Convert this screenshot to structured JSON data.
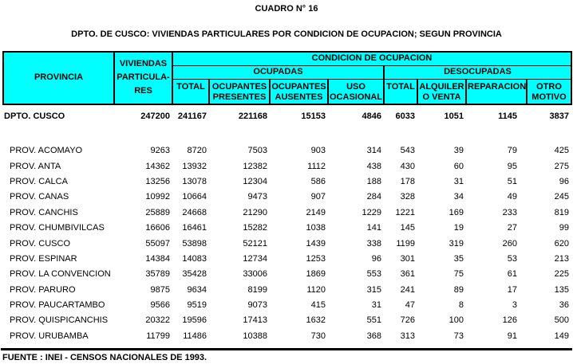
{
  "title": "CUADRO N° 16",
  "subtitle": "DPTO. DE CUSCO: VIVIENDAS PARTICULARES POR CONDICION DE OCUPACION; SEGUN PROVINCIA",
  "source": "FUENTE : INEI - CENSOS NACIONALES DE 1993.",
  "colors": {
    "header_bg": "#00FFFF",
    "border": "#000000",
    "text": "#000000",
    "background": "#FFFFFF"
  },
  "chart_data": {
    "type": "table",
    "header": {
      "provincia": "PROVINCIA",
      "viviendas": "VIVIENDAS\nPARTICULA-\nRES",
      "condicion": "CONDICION DE OCUPACION",
      "ocupadas": "OCUPADAS",
      "desocupadas": "DESOCUPADAS",
      "sub_columns": [
        "TOTAL",
        "OCUPANTES\nPRESENTES",
        "OCUPANTES\nAUSENTES",
        "USO\nOCASIONAL",
        "TOTAL",
        "ALQUILER\nO VENTA",
        "REPARACION",
        "OTRO\nMOTIVO"
      ]
    },
    "department_row": {
      "label": "DPTO. CUSCO",
      "values": [
        247200,
        241167,
        221168,
        15153,
        4846,
        6033,
        1051,
        1145,
        3837
      ]
    },
    "province_rows": [
      {
        "label": "PROV. ACOMAYO",
        "values": [
          9263,
          8720,
          7503,
          903,
          314,
          543,
          39,
          79,
          425
        ]
      },
      {
        "label": "PROV. ANTA",
        "values": [
          14362,
          13932,
          12382,
          1112,
          438,
          430,
          60,
          95,
          275
        ]
      },
      {
        "label": "PROV. CALCA",
        "values": [
          13256,
          13078,
          12304,
          586,
          188,
          178,
          31,
          51,
          96
        ]
      },
      {
        "label": "PROV. CANAS",
        "values": [
          10992,
          10664,
          9473,
          907,
          284,
          328,
          34,
          49,
          245
        ]
      },
      {
        "label": "PROV. CANCHIS",
        "values": [
          25889,
          24668,
          21290,
          2149,
          1229,
          1221,
          169,
          233,
          819
        ]
      },
      {
        "label": "PROV. CHUMBIVILCAS",
        "values": [
          16606,
          16461,
          15282,
          1038,
          141,
          145,
          19,
          27,
          99
        ]
      },
      {
        "label": "PROV. CUSCO",
        "values": [
          55097,
          53898,
          52121,
          1439,
          338,
          1199,
          319,
          260,
          620
        ]
      },
      {
        "label": "PROV. ESPINAR",
        "values": [
          14384,
          14083,
          12734,
          1253,
          96,
          301,
          35,
          53,
          213
        ]
      },
      {
        "label": "PROV. LA CONVENCION",
        "values": [
          35789,
          35428,
          33006,
          1869,
          553,
          361,
          75,
          61,
          225
        ]
      },
      {
        "label": "PROV. PARURO",
        "values": [
          9875,
          9634,
          8199,
          1120,
          315,
          241,
          89,
          17,
          135
        ]
      },
      {
        "label": "PROV. PAUCARTAMBO",
        "values": [
          9566,
          9519,
          9073,
          415,
          31,
          47,
          8,
          3,
          36
        ]
      },
      {
        "label": "PROV. QUISPICANCHIS",
        "values": [
          20322,
          19596,
          17413,
          1632,
          551,
          726,
          100,
          126,
          500
        ]
      },
      {
        "label": "PROV. URUBAMBA",
        "values": [
          11799,
          11486,
          10388,
          730,
          368,
          313,
          73,
          91,
          149
        ]
      }
    ]
  }
}
